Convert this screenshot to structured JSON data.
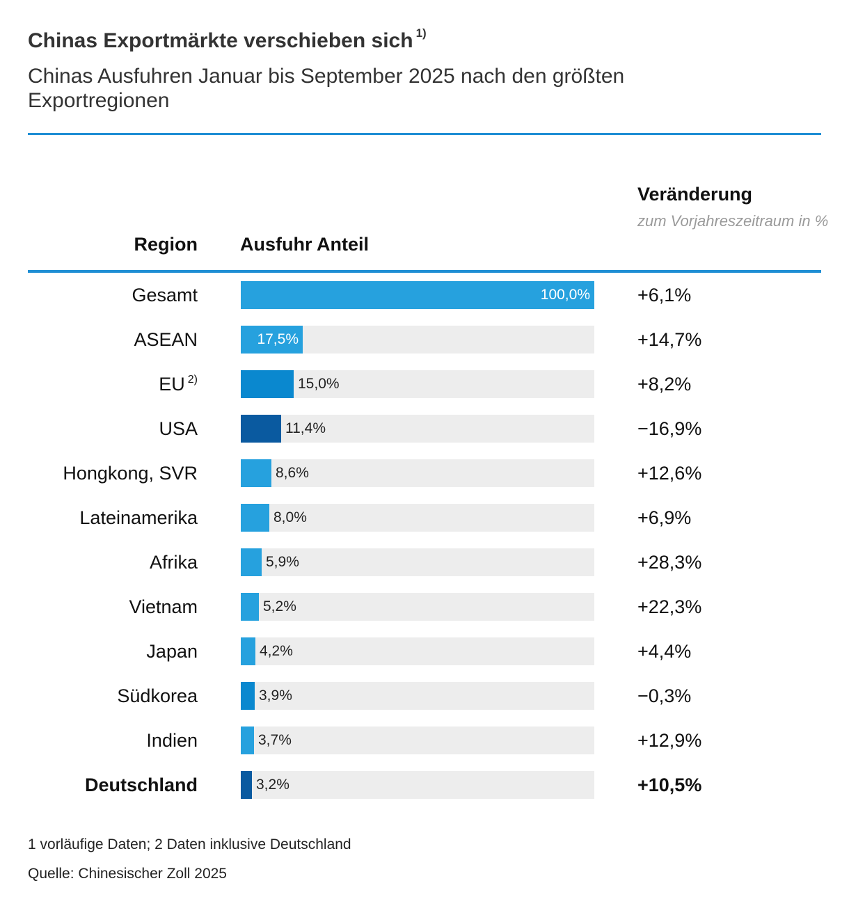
{
  "header": {
    "title": "Chinas Exportmärkte verschieben sich",
    "title_note": "1)",
    "subtitle": "Chinas Ausfuhren Januar bis September 2025 nach den größten Exportregionen"
  },
  "columns": {
    "region": "Region",
    "share": "Ausfuhr Anteil",
    "change": "Veränderung",
    "change_sub": "zum Vorjahreszeitraum in %"
  },
  "colors": {
    "accent": "#1f8ed4",
    "light_blue": "#26a1de",
    "mid_blue": "#0a88cf",
    "dark_blue": "#0a5aa0",
    "track": "#ededed"
  },
  "chart_data": {
    "type": "bar",
    "orientation": "horizontal",
    "title": "Chinas Exportmärkte verschieben sich",
    "subtitle": "Chinas Ausfuhren Januar bis September 2025 nach den größten Exportregionen",
    "xlabel": "Ausfuhr Anteil",
    "ylabel": "Region",
    "xlim": [
      0,
      100
    ],
    "unit": "%",
    "categories": [
      "Gesamt",
      "ASEAN",
      "EU",
      "USA",
      "Hongkong, SVR",
      "Lateinamerika",
      "Afrika",
      "Vietnam",
      "Japan",
      "Südkorea",
      "Indien",
      "Deutschland"
    ],
    "rows": [
      {
        "region": "Gesamt",
        "note": "",
        "value": 100.0,
        "label": "100,0%",
        "change": "+6,1%",
        "color": "#26a1de",
        "bold": false
      },
      {
        "region": "ASEAN",
        "note": "",
        "value": 17.5,
        "label": "17,5%",
        "change": "+14,7%",
        "color": "#26a1de",
        "bold": false
      },
      {
        "region": "EU",
        "note": "2)",
        "value": 15.0,
        "label": "15,0%",
        "change": "+8,2%",
        "color": "#0a88cf",
        "bold": false
      },
      {
        "region": "USA",
        "note": "",
        "value": 11.4,
        "label": "11,4%",
        "change": "−16,9%",
        "color": "#0a5aa0",
        "bold": false
      },
      {
        "region": "Hongkong, SVR",
        "note": "",
        "value": 8.6,
        "label": "8,6%",
        "change": "+12,6%",
        "color": "#26a1de",
        "bold": false
      },
      {
        "region": "Lateinamerika",
        "note": "",
        "value": 8.0,
        "label": "8,0%",
        "change": "+6,9%",
        "color": "#26a1de",
        "bold": false
      },
      {
        "region": "Afrika",
        "note": "",
        "value": 5.9,
        "label": "5,9%",
        "change": "+28,3%",
        "color": "#26a1de",
        "bold": false
      },
      {
        "region": "Vietnam",
        "note": "",
        "value": 5.2,
        "label": "5,2%",
        "change": "+22,3%",
        "color": "#26a1de",
        "bold": false
      },
      {
        "region": "Japan",
        "note": "",
        "value": 4.2,
        "label": "4,2%",
        "change": "+4,4%",
        "color": "#26a1de",
        "bold": false
      },
      {
        "region": "Südkorea",
        "note": "",
        "value": 3.9,
        "label": "3,9%",
        "change": "−0,3%",
        "color": "#0a88cf",
        "bold": false
      },
      {
        "region": "Indien",
        "note": "",
        "value": 3.7,
        "label": "3,7%",
        "change": "+12,9%",
        "color": "#26a1de",
        "bold": false
      },
      {
        "region": "Deutschland",
        "note": "",
        "value": 3.2,
        "label": "3,2%",
        "change": "+10,5%",
        "color": "#0a5aa0",
        "bold": true
      }
    ]
  },
  "footer": {
    "note": "1 vorläufige Daten; 2 Daten inklusive Deutschland",
    "source": "Quelle: Chinesischer Zoll 2025"
  }
}
